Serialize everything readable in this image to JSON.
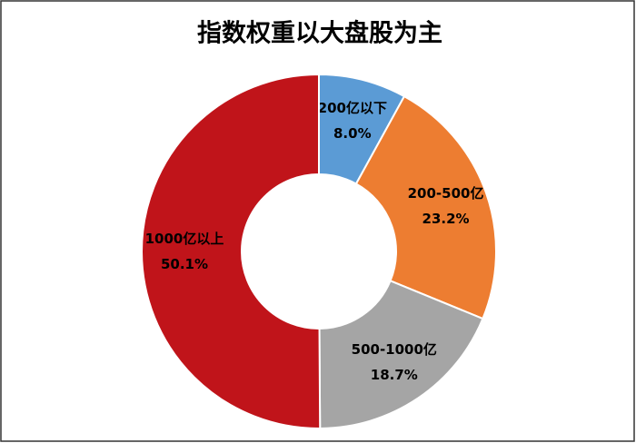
{
  "chart_data": {
    "type": "donut",
    "title": "指数权重以大盘股为主",
    "categories": [
      "200亿以下",
      "200-500亿",
      "500-1000亿",
      "1000亿以上"
    ],
    "values": [
      8.0,
      23.2,
      18.7,
      50.1
    ],
    "value_labels": [
      "8.0%",
      "23.2%",
      "18.7%",
      "50.1%"
    ],
    "colors": [
      "#5b9bd5",
      "#ed7d31",
      "#a5a5a5",
      "#c0141a"
    ]
  }
}
